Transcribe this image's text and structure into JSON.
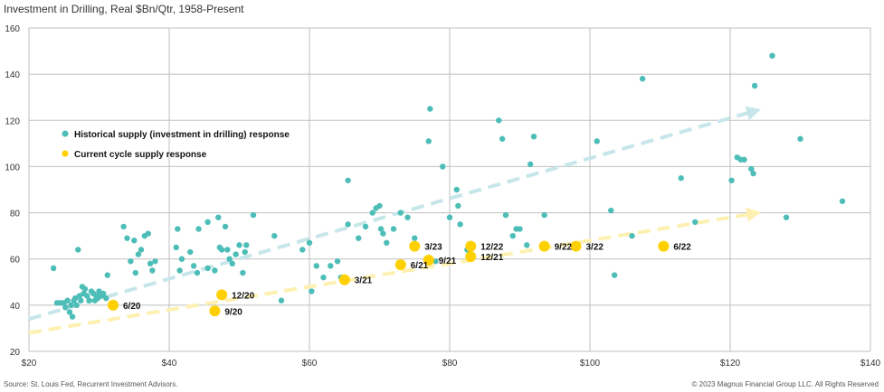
{
  "chart_data": {
    "type": "scatter",
    "title": "Investment in Drilling, Real $Bn/Qtr, 1958-Present",
    "xlim": [
      20,
      140
    ],
    "ylim": [
      20,
      160
    ],
    "x_ticks": [
      20,
      40,
      60,
      80,
      100,
      120,
      140
    ],
    "x_tick_labels": [
      "$20",
      "$40",
      "$60",
      "$80",
      "$100",
      "$120",
      "$140"
    ],
    "y_ticks": [
      20,
      40,
      60,
      80,
      100,
      120,
      140,
      160
    ],
    "y_tick_labels": [
      "20",
      "40",
      "60",
      "80",
      "100",
      "120",
      "140",
      "160"
    ],
    "grid": true,
    "legend_position": "top-left",
    "colors": {
      "historical": "#4dbdb7",
      "current": "#ffd000",
      "historical_trend": "#c7e6ea",
      "current_trend": "#fdf0b0",
      "grid": "#bfbfbf"
    },
    "series": [
      {
        "name": "Historical supply (investment in drilling) response",
        "points": [
          [
            23.5,
            56
          ],
          [
            24,
            41
          ],
          [
            24.5,
            41
          ],
          [
            25,
            41
          ],
          [
            25.2,
            39
          ],
          [
            25.5,
            42
          ],
          [
            25.8,
            37
          ],
          [
            26,
            40
          ],
          [
            26.2,
            35
          ],
          [
            26.4,
            42
          ],
          [
            26.6,
            43
          ],
          [
            26.8,
            40
          ],
          [
            27,
            64
          ],
          [
            27.2,
            44
          ],
          [
            27.4,
            42
          ],
          [
            27.6,
            48
          ],
          [
            27.8,
            45
          ],
          [
            28,
            47
          ],
          [
            28.3,
            44
          ],
          [
            28.6,
            42
          ],
          [
            28.9,
            46
          ],
          [
            29.2,
            45
          ],
          [
            29.4,
            42
          ],
          [
            29.6,
            44
          ],
          [
            29.8,
            43
          ],
          [
            30,
            46
          ],
          [
            30.3,
            44
          ],
          [
            30.6,
            45
          ],
          [
            31,
            43
          ],
          [
            31.2,
            53
          ],
          [
            33.5,
            74
          ],
          [
            34,
            69
          ],
          [
            34.5,
            59
          ],
          [
            35,
            68
          ],
          [
            35.2,
            54
          ],
          [
            35.6,
            62
          ],
          [
            36,
            64
          ],
          [
            36.5,
            70
          ],
          [
            37,
            71
          ],
          [
            37.3,
            58
          ],
          [
            37.6,
            55
          ],
          [
            38,
            59
          ],
          [
            41,
            65
          ],
          [
            41.2,
            73
          ],
          [
            41.5,
            55
          ],
          [
            41.8,
            60
          ],
          [
            43,
            63
          ],
          [
            43.5,
            57
          ],
          [
            44,
            54
          ],
          [
            44.2,
            73
          ],
          [
            45.5,
            76
          ],
          [
            45.5,
            56
          ],
          [
            46.5,
            55
          ],
          [
            47,
            78
          ],
          [
            47.2,
            65
          ],
          [
            47.5,
            64
          ],
          [
            48,
            74
          ],
          [
            48.3,
            64
          ],
          [
            48.6,
            60
          ],
          [
            49,
            58
          ],
          [
            49.5,
            62
          ],
          [
            50,
            66
          ],
          [
            50.5,
            54
          ],
          [
            50.8,
            63
          ],
          [
            51,
            66
          ],
          [
            52,
            79
          ],
          [
            55,
            70
          ],
          [
            56,
            42
          ],
          [
            59,
            64
          ],
          [
            60,
            67
          ],
          [
            60.3,
            46
          ],
          [
            61,
            57
          ],
          [
            62,
            52
          ],
          [
            63,
            57
          ],
          [
            64,
            59
          ],
          [
            64.5,
            52
          ],
          [
            65.5,
            75
          ],
          [
            65.5,
            94
          ],
          [
            67,
            69
          ],
          [
            68,
            74
          ],
          [
            69,
            80
          ],
          [
            69.5,
            82
          ],
          [
            70,
            83
          ],
          [
            70.2,
            73
          ],
          [
            70.5,
            71
          ],
          [
            71,
            67
          ],
          [
            72,
            73
          ],
          [
            73,
            80
          ],
          [
            74,
            78
          ],
          [
            75,
            69
          ],
          [
            77,
            111
          ],
          [
            77.2,
            125
          ],
          [
            78,
            59
          ],
          [
            79,
            100
          ],
          [
            80,
            78
          ],
          [
            81,
            90
          ],
          [
            81.2,
            83
          ],
          [
            81.5,
            75
          ],
          [
            82.5,
            64
          ],
          [
            87,
            120
          ],
          [
            87.5,
            112
          ],
          [
            88,
            79
          ],
          [
            89,
            70
          ],
          [
            89.5,
            73
          ],
          [
            90,
            73
          ],
          [
            91,
            66
          ],
          [
            91.5,
            101
          ],
          [
            92,
            113
          ],
          [
            93.5,
            79
          ],
          [
            101,
            111
          ],
          [
            103,
            81
          ],
          [
            103.5,
            53
          ],
          [
            106,
            70
          ],
          [
            107.5,
            138
          ],
          [
            113,
            95
          ],
          [
            115,
            76
          ],
          [
            120.2,
            94
          ],
          [
            121,
            104
          ],
          [
            121.5,
            103
          ],
          [
            122,
            103
          ],
          [
            123,
            99
          ],
          [
            123.3,
            97
          ],
          [
            123.5,
            135
          ],
          [
            126,
            148
          ],
          [
            128,
            78
          ],
          [
            130,
            112
          ],
          [
            136,
            85
          ]
        ]
      },
      {
        "name": "Current cycle supply response",
        "points": [
          [
            32,
            40,
            "6/20"
          ],
          [
            46.5,
            37.5,
            "9/20"
          ],
          [
            47.5,
            44.5,
            "12/20"
          ],
          [
            65,
            51,
            "3/21"
          ],
          [
            73,
            57.5,
            "6/21"
          ],
          [
            77,
            59.5,
            "9/21"
          ],
          [
            83,
            61,
            "12/21"
          ],
          [
            75,
            65.5,
            "3/23"
          ],
          [
            83,
            65.5,
            "12/22"
          ],
          [
            93.5,
            65.5,
            "9/22"
          ],
          [
            98,
            65.5,
            "3/22"
          ],
          [
            110.5,
            65.5,
            "6/22"
          ]
        ]
      }
    ],
    "trend_lines": [
      {
        "name": "Historical supply response trend",
        "from": [
          20,
          34
        ],
        "to": [
          124,
          124.5
        ]
      },
      {
        "name": "Current cycle supply response trend",
        "from": [
          20,
          28
        ],
        "to": [
          124,
          80
        ]
      }
    ]
  },
  "source_note": "Source: St. Louis Fed, Recurrent Investment Advisors.",
  "copyright_note": "© 2023 Magnus Financial Group LLC. All Rights Reserved"
}
